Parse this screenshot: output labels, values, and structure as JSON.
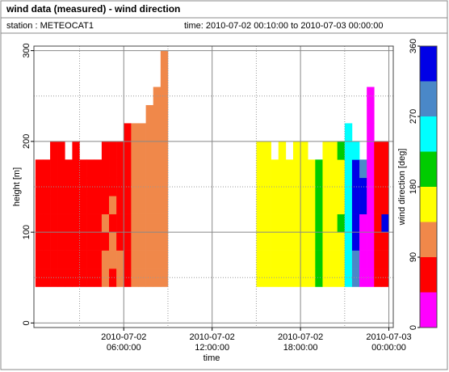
{
  "chart_data": {
    "type": "heatmap",
    "title": "wind data (measured) - wind direction",
    "station": "station : METEOCAT1",
    "time_range": "time: 2010-07-02 00:10:00 to 2010-07-03 00:00:00",
    "xlabel": "time",
    "ylabel": "height [m]",
    "xlim": [
      -0.1,
      24.3
    ],
    "ylim": [
      -5,
      305
    ],
    "xticks": [
      {
        "value": 6,
        "label": "2010-07-02\n06:00:00"
      },
      {
        "value": 12,
        "label": "2010-07-02\n12:00:00"
      },
      {
        "value": 18,
        "label": "2010-07-02\n18:00:00"
      },
      {
        "value": 24,
        "label": "2010-07-03\n00:00:00"
      }
    ],
    "xminor": [
      3,
      9,
      15,
      21
    ],
    "yticks": [
      0,
      100,
      200,
      300
    ],
    "yminor": [
      50,
      150,
      250
    ],
    "grid": true,
    "xbins": [
      0,
      0.5,
      1,
      1.5,
      2,
      2.5,
      3,
      3.5,
      4,
      4.5,
      5,
      5.5,
      6,
      6.5,
      7,
      7.5,
      8,
      8.5,
      9,
      9.5,
      10,
      10.5,
      11,
      11.5,
      12,
      12.5,
      13,
      13.5,
      14,
      14.5,
      15,
      15.5,
      16,
      16.5,
      17,
      17.5,
      18,
      18.5,
      19,
      19.5,
      20,
      20.5,
      21,
      21.5,
      22,
      22.5,
      23,
      23.5,
      24
    ],
    "ybins": [
      40,
      60,
      80,
      100,
      120,
      140,
      160,
      180,
      200,
      220,
      240,
      260,
      280,
      300
    ],
    "z": [
      [
        70,
        70,
        70,
        70,
        70,
        70,
        70,
        70,
        70,
        115,
        70,
        115,
        70,
        115,
        115,
        115,
        115,
        115,
        null,
        null,
        null,
        null,
        null,
        null,
        null,
        null,
        null,
        null,
        null,
        null,
        160,
        160,
        160,
        160,
        160,
        160,
        160,
        160,
        200,
        160,
        160,
        160,
        250,
        290,
        20,
        20,
        70,
        70
      ],
      [
        70,
        70,
        70,
        70,
        70,
        70,
        70,
        70,
        70,
        115,
        115,
        115,
        70,
        115,
        115,
        115,
        115,
        115,
        null,
        null,
        null,
        null,
        null,
        null,
        null,
        null,
        null,
        null,
        null,
        null,
        160,
        160,
        160,
        160,
        160,
        160,
        160,
        160,
        200,
        160,
        160,
        160,
        250,
        290,
        20,
        20,
        70,
        70
      ],
      [
        70,
        70,
        70,
        70,
        70,
        70,
        70,
        70,
        70,
        70,
        115,
        70,
        70,
        115,
        115,
        115,
        115,
        115,
        null,
        null,
        null,
        null,
        null,
        null,
        null,
        null,
        null,
        null,
        null,
        null,
        160,
        160,
        160,
        160,
        160,
        160,
        160,
        160,
        200,
        160,
        160,
        160,
        250,
        335,
        20,
        20,
        70,
        70
      ],
      [
        70,
        70,
        70,
        70,
        70,
        70,
        70,
        70,
        70,
        115,
        70,
        70,
        70,
        115,
        115,
        115,
        115,
        115,
        null,
        null,
        null,
        null,
        null,
        null,
        null,
        null,
        null,
        null,
        null,
        null,
        160,
        160,
        160,
        160,
        160,
        160,
        160,
        160,
        200,
        160,
        160,
        200,
        250,
        335,
        20,
        20,
        70,
        335
      ],
      [
        70,
        70,
        70,
        70,
        70,
        70,
        70,
        70,
        70,
        70,
        115,
        70,
        70,
        115,
        115,
        115,
        115,
        115,
        null,
        null,
        null,
        null,
        null,
        null,
        null,
        null,
        null,
        null,
        null,
        null,
        160,
        160,
        160,
        160,
        160,
        160,
        160,
        160,
        200,
        160,
        160,
        160,
        250,
        335,
        335,
        20,
        70,
        70
      ],
      [
        70,
        70,
        70,
        70,
        70,
        70,
        70,
        70,
        70,
        70,
        70,
        70,
        70,
        115,
        115,
        115,
        115,
        115,
        null,
        null,
        null,
        null,
        null,
        null,
        null,
        null,
        null,
        null,
        null,
        null,
        160,
        160,
        160,
        160,
        160,
        160,
        160,
        160,
        200,
        160,
        160,
        160,
        250,
        335,
        335,
        20,
        70,
        70
      ],
      [
        70,
        70,
        70,
        70,
        70,
        70,
        70,
        70,
        70,
        70,
        70,
        70,
        70,
        115,
        115,
        115,
        115,
        115,
        null,
        null,
        null,
        null,
        null,
        null,
        null,
        null,
        null,
        null,
        null,
        null,
        160,
        160,
        160,
        160,
        160,
        160,
        160,
        160,
        200,
        160,
        160,
        160,
        250,
        335,
        290,
        20,
        70,
        70
      ],
      [
        null,
        null,
        70,
        70,
        null,
        70,
        null,
        null,
        null,
        70,
        70,
        70,
        70,
        115,
        115,
        115,
        115,
        115,
        null,
        null,
        null,
        null,
        null,
        null,
        null,
        null,
        null,
        null,
        null,
        null,
        160,
        160,
        null,
        160,
        null,
        160,
        160,
        null,
        null,
        160,
        160,
        200,
        250,
        250,
        null,
        20,
        70,
        70
      ],
      [
        null,
        null,
        null,
        null,
        null,
        null,
        null,
        null,
        null,
        null,
        null,
        null,
        70,
        115,
        115,
        115,
        115,
        115,
        null,
        null,
        null,
        null,
        null,
        null,
        null,
        null,
        null,
        null,
        null,
        null,
        null,
        null,
        null,
        null,
        null,
        null,
        null,
        null,
        null,
        null,
        null,
        null,
        250,
        null,
        null,
        20,
        null,
        null
      ],
      [
        null,
        null,
        null,
        null,
        null,
        null,
        null,
        null,
        null,
        null,
        null,
        null,
        null,
        null,
        null,
        115,
        115,
        115,
        null,
        null,
        null,
        null,
        null,
        null,
        null,
        null,
        null,
        null,
        null,
        null,
        null,
        null,
        null,
        null,
        null,
        null,
        null,
        null,
        null,
        null,
        null,
        null,
        null,
        null,
        null,
        20,
        null,
        null
      ],
      [
        null,
        null,
        null,
        null,
        null,
        null,
        null,
        null,
        null,
        null,
        null,
        null,
        null,
        null,
        null,
        null,
        115,
        115,
        null,
        null,
        null,
        null,
        null,
        null,
        null,
        null,
        null,
        null,
        null,
        null,
        null,
        null,
        null,
        null,
        null,
        null,
        null,
        null,
        null,
        null,
        null,
        null,
        null,
        null,
        null,
        20,
        null,
        null
      ],
      [
        null,
        null,
        null,
        null,
        null,
        null,
        null,
        null,
        null,
        null,
        null,
        null,
        null,
        null,
        null,
        null,
        null,
        115,
        null,
        null,
        null,
        null,
        null,
        null,
        null,
        null,
        null,
        null,
        null,
        null,
        null,
        null,
        null,
        null,
        null,
        null,
        null,
        null,
        null,
        null,
        null,
        null,
        null,
        null,
        null,
        null,
        null,
        null
      ],
      [
        null,
        null,
        null,
        null,
        null,
        null,
        null,
        null,
        null,
        null,
        null,
        null,
        null,
        null,
        null,
        null,
        null,
        115,
        null,
        null,
        null,
        null,
        null,
        null,
        null,
        null,
        null,
        null,
        null,
        null,
        null,
        null,
        null,
        null,
        null,
        null,
        null,
        null,
        null,
        null,
        null,
        null,
        null,
        null,
        null,
        null,
        null,
        null
      ]
    ],
    "colorbar": {
      "label": "wind direction [deg]",
      "lim": [
        0,
        360
      ],
      "ticks": [
        0,
        90,
        180,
        270,
        360
      ],
      "colors": [
        "#ff00ff",
        "#ff0000",
        "#f0884a",
        "#ffff00",
        "#00cc00",
        "#00ffff",
        "#4a88c8",
        "#0000e6"
      ]
    }
  }
}
